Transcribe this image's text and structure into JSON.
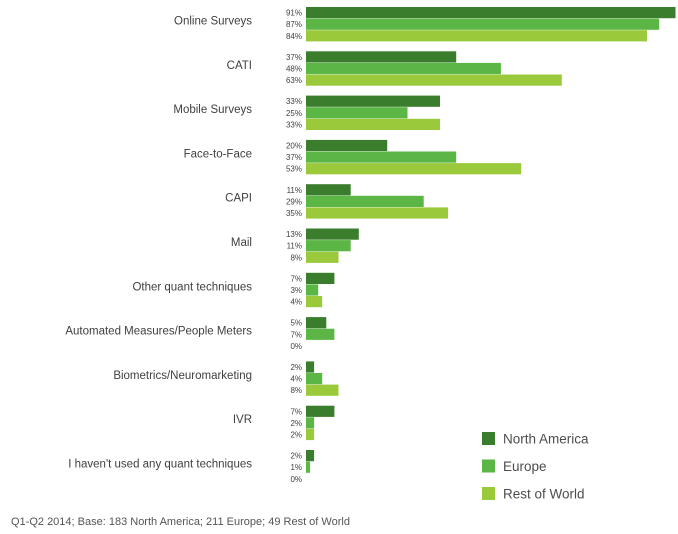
{
  "chart_data": {
    "type": "bar",
    "orientation": "horizontal",
    "categories": [
      "Online Surveys",
      "CATI",
      "Mobile Surveys",
      "Face-to-Face",
      "CAPI",
      "Mail",
      "Other quant techniques",
      "Automated Measures/People Meters",
      "Biometrics/Neuromarketing",
      "IVR",
      "I haven't used any quant techniques"
    ],
    "series": [
      {
        "name": "North America",
        "color": "#3a7d2c",
        "values": [
          91,
          37,
          33,
          20,
          11,
          13,
          7,
          5,
          2,
          7,
          2
        ]
      },
      {
        "name": "Europe",
        "color": "#5cb646",
        "values": [
          87,
          48,
          25,
          37,
          29,
          11,
          3,
          7,
          4,
          2,
          1
        ]
      },
      {
        "name": "Rest of World",
        "color": "#9bc93c",
        "values": [
          84,
          63,
          33,
          53,
          35,
          8,
          4,
          0,
          8,
          2,
          0
        ]
      }
    ],
    "value_suffix": "%",
    "xlim": [
      0,
      100
    ],
    "legend_position": "bottom-right"
  },
  "footnote": "Q1-Q2 2014; Base: 183 North America; 211 Europe; 49 Rest of World"
}
